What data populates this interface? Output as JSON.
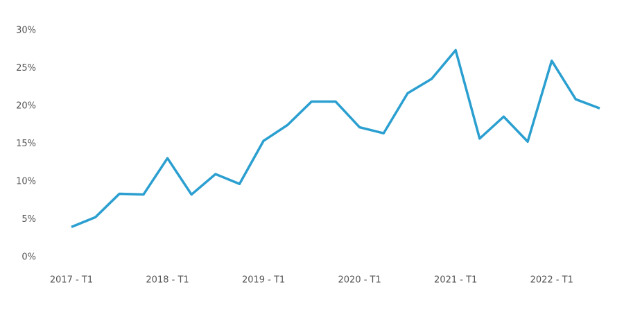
{
  "chart_data": {
    "type": "line",
    "categories": [
      "2017 - T1",
      null,
      null,
      null,
      "2018 - T1",
      null,
      null,
      null,
      "2019 - T1",
      null,
      null,
      null,
      "2020 - T1",
      null,
      null,
      null,
      "2021 - T1",
      null,
      null,
      null,
      "2022 - T1",
      null,
      null
    ],
    "series": [
      {
        "color": "#2a9fd0",
        "values": [
          4.0,
          5.3,
          8.4,
          8.3,
          13.1,
          8.3,
          11.0,
          9.7,
          15.4,
          17.5,
          20.6,
          20.6,
          17.2,
          16.4,
          21.7,
          23.6,
          27.4,
          15.7,
          18.6,
          15.3,
          26.0,
          20.9,
          19.7
        ]
      }
    ],
    "ylim": [
      0,
      30
    ],
    "yticks": [
      {
        "value": 0,
        "label": "0%"
      },
      {
        "value": 5,
        "label": "5%"
      },
      {
        "value": 10,
        "label": "10%"
      },
      {
        "value": 15,
        "label": "15%"
      },
      {
        "value": 20,
        "label": "20%"
      },
      {
        "value": 25,
        "label": "25%"
      },
      {
        "value": 30,
        "label": "30%"
      }
    ],
    "grid": false
  }
}
